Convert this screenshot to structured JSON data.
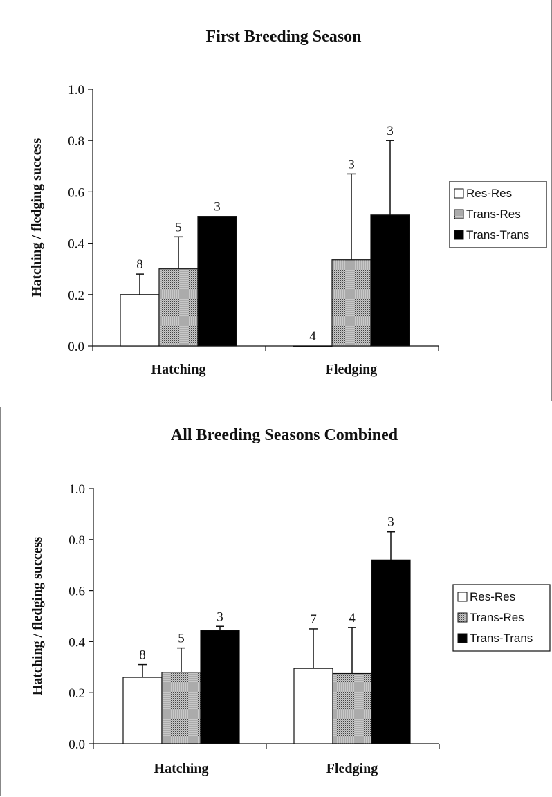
{
  "chart_data": [
    {
      "type": "bar",
      "title": "First Breeding Season",
      "ylabel": "Hatching / fledging success",
      "xlabel": "",
      "categories": [
        "Hatching",
        "Fledging"
      ],
      "ylim": [
        0,
        1.0
      ],
      "yticks": [
        "0.0",
        "0.2",
        "0.4",
        "0.6",
        "0.8",
        "1.0"
      ],
      "legend_position": "right",
      "series": [
        {
          "name": "Res-Res",
          "fill": "white",
          "values": [
            0.2,
            0.0
          ],
          "errors": [
            0.08,
            0.0
          ],
          "n": [
            "8",
            "4"
          ]
        },
        {
          "name": "Trans-Res",
          "fill": "gray-stipple",
          "values": [
            0.3,
            0.335
          ],
          "errors": [
            0.125,
            0.335
          ],
          "n": [
            "5",
            "3"
          ]
        },
        {
          "name": "Trans-Trans",
          "fill": "black",
          "values": [
            0.505,
            0.51
          ],
          "errors": [
            0.0,
            0.29
          ],
          "n": [
            "3",
            "3"
          ]
        }
      ]
    },
    {
      "type": "bar",
      "title": "All Breeding Seasons Combined",
      "ylabel": "Hatching / fledging success",
      "xlabel": "",
      "categories": [
        "Hatching",
        "Fledging"
      ],
      "ylim": [
        0,
        1.0
      ],
      "yticks": [
        "0.0",
        "0.2",
        "0.4",
        "0.6",
        "0.8",
        "1.0"
      ],
      "legend_position": "right",
      "series": [
        {
          "name": "Res-Res",
          "fill": "white",
          "values": [
            0.26,
            0.295
          ],
          "errors": [
            0.05,
            0.155
          ],
          "n": [
            "8",
            "7"
          ]
        },
        {
          "name": "Trans-Res",
          "fill": "gray-stipple",
          "values": [
            0.28,
            0.275
          ],
          "errors": [
            0.095,
            0.18
          ],
          "n": [
            "5",
            "4"
          ]
        },
        {
          "name": "Trans-Trans",
          "fill": "black",
          "values": [
            0.445,
            0.72
          ],
          "errors": [
            0.015,
            0.11
          ],
          "n": [
            "3",
            "3"
          ]
        }
      ]
    }
  ],
  "colors": {
    "res_res": "#ffffff",
    "trans_res": "#a8a8a8",
    "trans_trans": "#000000",
    "axis": "#111111"
  }
}
